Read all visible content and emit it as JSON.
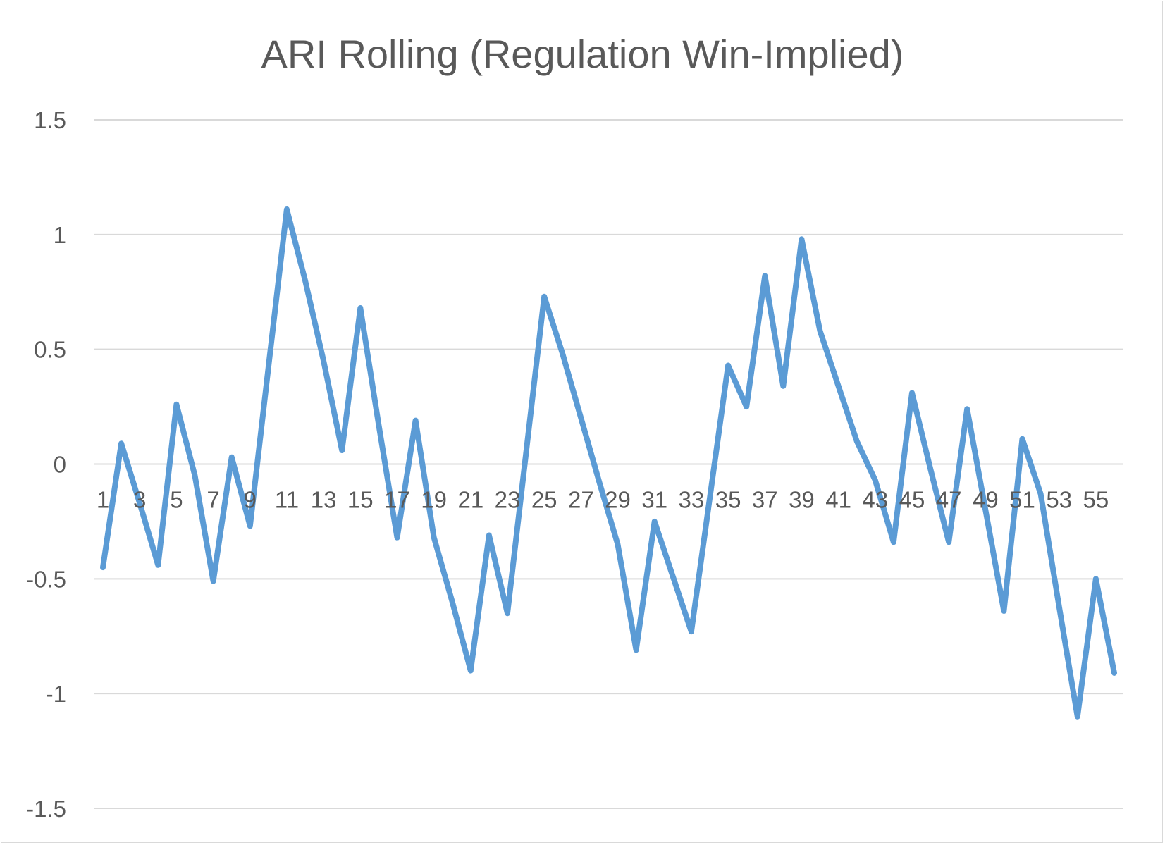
{
  "chart_data": {
    "type": "line",
    "title": "ARI Rolling (Regulation Win-Implied)",
    "xlabel": "",
    "ylabel": "",
    "ylim": [
      -1.5,
      1.5
    ],
    "yticks": [
      -1.5,
      -1,
      -0.5,
      0,
      0.5,
      1,
      1.5
    ],
    "yticklabels": [
      "-1.5",
      "-1",
      "-0.5",
      "0",
      "0.5",
      "1",
      "1.5"
    ],
    "xticklabels": [
      "1",
      "3",
      "5",
      "7",
      "9",
      "11",
      "13",
      "15",
      "17",
      "19",
      "21",
      "23",
      "25",
      "27",
      "29",
      "31",
      "33",
      "35",
      "37",
      "39",
      "41",
      "43",
      "45",
      "47",
      "49",
      "51",
      "53",
      "55"
    ],
    "grid": true,
    "legend": "none",
    "line_color": "#5b9bd5",
    "grid_color": "#d9d9d9",
    "series": [
      {
        "x": [
          1,
          2,
          3,
          4,
          5,
          6,
          7,
          8,
          9,
          10,
          11,
          12,
          13,
          14,
          15,
          16,
          17,
          18,
          19,
          20,
          21,
          22,
          23,
          24,
          25,
          26,
          27,
          28,
          29,
          30,
          31,
          32,
          33,
          34,
          35,
          36,
          37,
          38,
          39,
          40,
          41,
          42,
          43,
          44,
          45,
          46,
          47,
          48,
          49,
          50,
          51,
          52,
          53,
          54,
          55,
          56
        ],
        "values": [
          -0.45,
          0.09,
          -0.17,
          -0.44,
          0.26,
          -0.05,
          -0.51,
          0.03,
          -0.27,
          0.42,
          1.11,
          0.8,
          0.45,
          0.06,
          0.68,
          0.17,
          -0.32,
          0.19,
          -0.32,
          -0.6,
          -0.9,
          -0.31,
          -0.65,
          0.04,
          0.73,
          0.48,
          0.2,
          -0.08,
          -0.35,
          -0.81,
          -0.25,
          -0.49,
          -0.73,
          -0.15,
          0.43,
          0.25,
          0.82,
          0.34,
          0.98,
          0.58,
          0.34,
          0.1,
          -0.07,
          -0.34,
          0.31,
          -0.02,
          -0.34,
          0.24,
          -0.2,
          -0.64,
          0.11,
          -0.13,
          -0.62,
          -1.1,
          -0.5,
          -0.91
        ]
      }
    ]
  }
}
